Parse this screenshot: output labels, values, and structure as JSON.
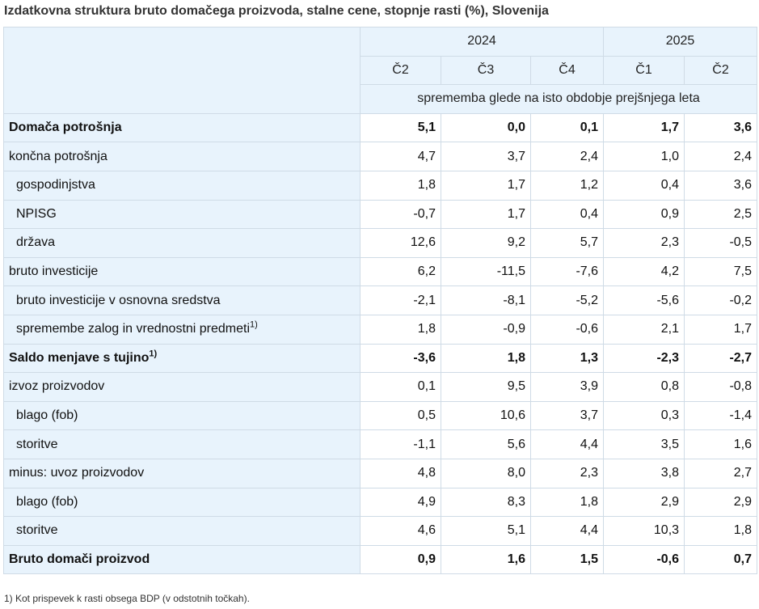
{
  "title": "Izdatkovna struktura bruto domačega proizvoda, stalne cene, stopnje rasti (%), Slovenija",
  "header": {
    "years": [
      "2024",
      "2025"
    ],
    "quarters": [
      "Č2",
      "Č3",
      "Č4",
      "Č1",
      "Č2"
    ],
    "measure": "sprememba glede na isto obdobje prejšnjega leta"
  },
  "rows": [
    {
      "label": "Domača potrošnja",
      "values": [
        "5,1",
        "0,0",
        "0,1",
        "1,7",
        "3,6"
      ]
    },
    {
      "label": "končna potrošnja",
      "values": [
        "4,7",
        "3,7",
        "2,4",
        "1,0",
        "2,4"
      ]
    },
    {
      "label": "gospodinjstva",
      "values": [
        "1,8",
        "1,7",
        "1,2",
        "0,4",
        "3,6"
      ]
    },
    {
      "label": "NPISG",
      "values": [
        "-0,7",
        "1,7",
        "0,4",
        "0,9",
        "2,5"
      ]
    },
    {
      "label": "država",
      "values": [
        "12,6",
        "9,2",
        "5,7",
        "2,3",
        "-0,5"
      ]
    },
    {
      "label": "bruto investicije",
      "values": [
        "6,2",
        "-11,5",
        "-7,6",
        "4,2",
        "7,5"
      ]
    },
    {
      "label": "bruto investicije v osnovna sredstva",
      "values": [
        "-2,1",
        "-8,1",
        "-5,2",
        "-5,6",
        "-0,2"
      ]
    },
    {
      "label": "spremembe zalog in vrednostni predmeti",
      "note": "1)",
      "values": [
        "1,8",
        "-0,9",
        "-0,6",
        "2,1",
        "1,7"
      ]
    },
    {
      "label": "Saldo menjave s tujino",
      "note": "1)",
      "values": [
        "-3,6",
        "1,8",
        "1,3",
        "-2,3",
        "-2,7"
      ]
    },
    {
      "label": "izvoz proizvodov",
      "values": [
        "0,1",
        "9,5",
        "3,9",
        "0,8",
        "-0,8"
      ]
    },
    {
      "label": "blago (fob)",
      "values": [
        "0,5",
        "10,6",
        "3,7",
        "0,3",
        "-1,4"
      ]
    },
    {
      "label": "storitve",
      "values": [
        "-1,1",
        "5,6",
        "4,4",
        "3,5",
        "1,6"
      ]
    },
    {
      "label": "minus: uvoz proizvodov",
      "values": [
        "4,8",
        "8,0",
        "2,3",
        "3,8",
        "2,7"
      ]
    },
    {
      "label": "blago (fob)",
      "values": [
        "4,9",
        "8,3",
        "1,8",
        "2,9",
        "2,9"
      ]
    },
    {
      "label": "storitve",
      "values": [
        "4,6",
        "5,1",
        "4,4",
        "10,3",
        "1,8"
      ]
    },
    {
      "label": "Bruto domači proizvod",
      "values": [
        "0,9",
        "1,6",
        "1,5",
        "-0,6",
        "0,7"
      ]
    }
  ],
  "footnote": "1) Kot prispevek k rasti obsega BDP (v odstotnih točkah)."
}
